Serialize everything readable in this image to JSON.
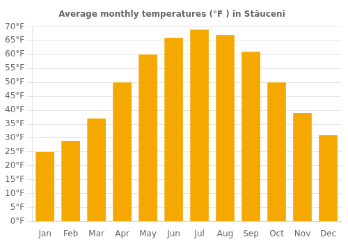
{
  "chart_data": {
    "type": "bar",
    "title": "Average monthly temperatures (°F ) in Stăuceni",
    "categories": [
      "Jan",
      "Feb",
      "Mar",
      "Apr",
      "May",
      "Jun",
      "Jul",
      "Aug",
      "Sep",
      "Oct",
      "Nov",
      "Dec"
    ],
    "values": [
      25,
      29,
      37,
      50,
      60,
      66,
      69,
      67,
      61,
      50,
      39,
      31
    ],
    "color": "#F5A800",
    "ylim": [
      0,
      70
    ],
    "yticks": [
      {
        "value": 0,
        "label": "0°F"
      },
      {
        "value": 5,
        "label": "5°F"
      },
      {
        "value": 10,
        "label": "10°F"
      },
      {
        "value": 15,
        "label": "15°F"
      },
      {
        "value": 20,
        "label": "20°F"
      },
      {
        "value": 25,
        "label": "25°F"
      },
      {
        "value": 30,
        "label": "30°F"
      },
      {
        "value": 35,
        "label": "35°F"
      },
      {
        "value": 40,
        "label": "40°F"
      },
      {
        "value": 45,
        "label": "45°F"
      },
      {
        "value": 50,
        "label": "50°F"
      },
      {
        "value": 55,
        "label": "55°F"
      },
      {
        "value": 60,
        "label": "60°F"
      },
      {
        "value": 65,
        "label": "65°F"
      },
      {
        "value": 70,
        "label": "70°F"
      }
    ],
    "grid": true
  }
}
